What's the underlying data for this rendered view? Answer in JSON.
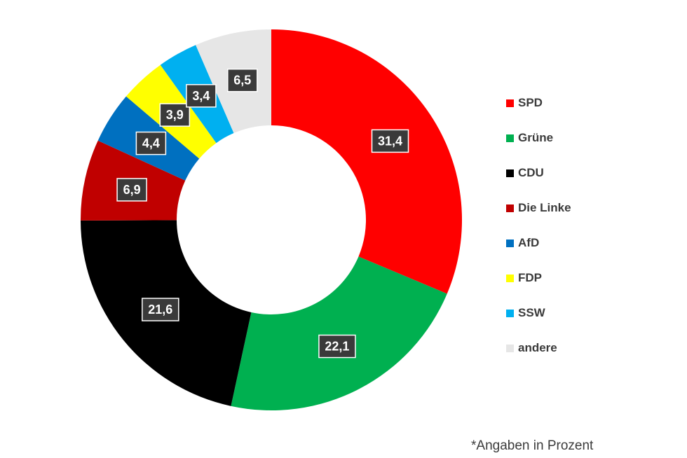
{
  "chart_data": {
    "type": "pie",
    "variant": "donut",
    "categories": [
      "SPD",
      "Grüne",
      "CDU",
      "Die Linke",
      "AfD",
      "FDP",
      "SSW",
      "andere"
    ],
    "values": [
      31.4,
      22.1,
      21.6,
      6.9,
      4.4,
      3.9,
      3.4,
      6.5
    ],
    "value_labels": [
      "31,4",
      "22,1",
      "21,6",
      "6,9",
      "4,4",
      "3,9",
      "3,4",
      "6,5"
    ],
    "colors": [
      "#ff0000",
      "#00b050",
      "#000000",
      "#c00000",
      "#0070c0",
      "#ffff00",
      "#00b0f0",
      "#e6e6e6"
    ],
    "legend_position": "right",
    "footnote": "*Angaben in Prozent"
  }
}
